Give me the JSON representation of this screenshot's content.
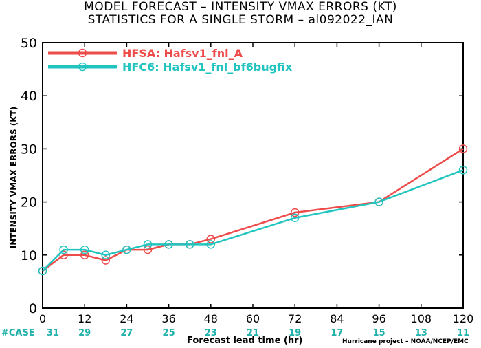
{
  "header": {
    "title": "MODEL FORECAST – INTENSITY VMAX ERRORS (KT)",
    "subtitle": "STATISTICS FOR A SINGLE STORM – al092022_IAN"
  },
  "footer": {
    "credit": "Hurricane project – NOAA/NCEP/EMC",
    "case_label": "#CASE"
  },
  "colors": {
    "hfsa": "#ee4b4b",
    "hfc6": "#22c4c0",
    "case_counts": "#20b2aa"
  },
  "chart_data": {
    "type": "line",
    "title": "MODEL FORECAST – INTENSITY VMAX ERRORS (KT)",
    "xlabel": "Forecast lead time (hr)",
    "ylabel": "INTENSITY VMAX ERRORS (KT)",
    "xlim": [
      0,
      120
    ],
    "ylim": [
      0,
      50
    ],
    "x_ticks": [
      0,
      12,
      24,
      36,
      48,
      60,
      72,
      84,
      96,
      108,
      120
    ],
    "y_ticks": [
      0,
      10,
      20,
      30,
      40,
      50
    ],
    "grid": false,
    "legend_position": "top-left",
    "series": [
      {
        "name": "HFSA: Hafsv1_fnl_A",
        "color": "#ee4b4b",
        "x": [
          0,
          6,
          12,
          18,
          24,
          30,
          36,
          42,
          48,
          72,
          96,
          120
        ],
        "y": [
          7,
          10,
          10,
          9,
          11,
          11,
          12,
          12,
          13,
          18,
          20,
          30
        ]
      },
      {
        "name": "HFC6: Hafsv1_fnl_bf6bugfix",
        "color": "#22c4c0",
        "x": [
          0,
          6,
          12,
          18,
          24,
          30,
          36,
          42,
          48,
          72,
          96,
          120
        ],
        "y": [
          7,
          11,
          11,
          10,
          11,
          12,
          12,
          12,
          12,
          17,
          20,
          26
        ]
      }
    ],
    "case_counts": {
      "x": [
        0,
        12,
        24,
        36,
        48,
        60,
        72,
        84,
        96,
        108,
        120
      ],
      "values": [
        31,
        29,
        27,
        25,
        23,
        21,
        19,
        17,
        15,
        13,
        11
      ]
    }
  }
}
